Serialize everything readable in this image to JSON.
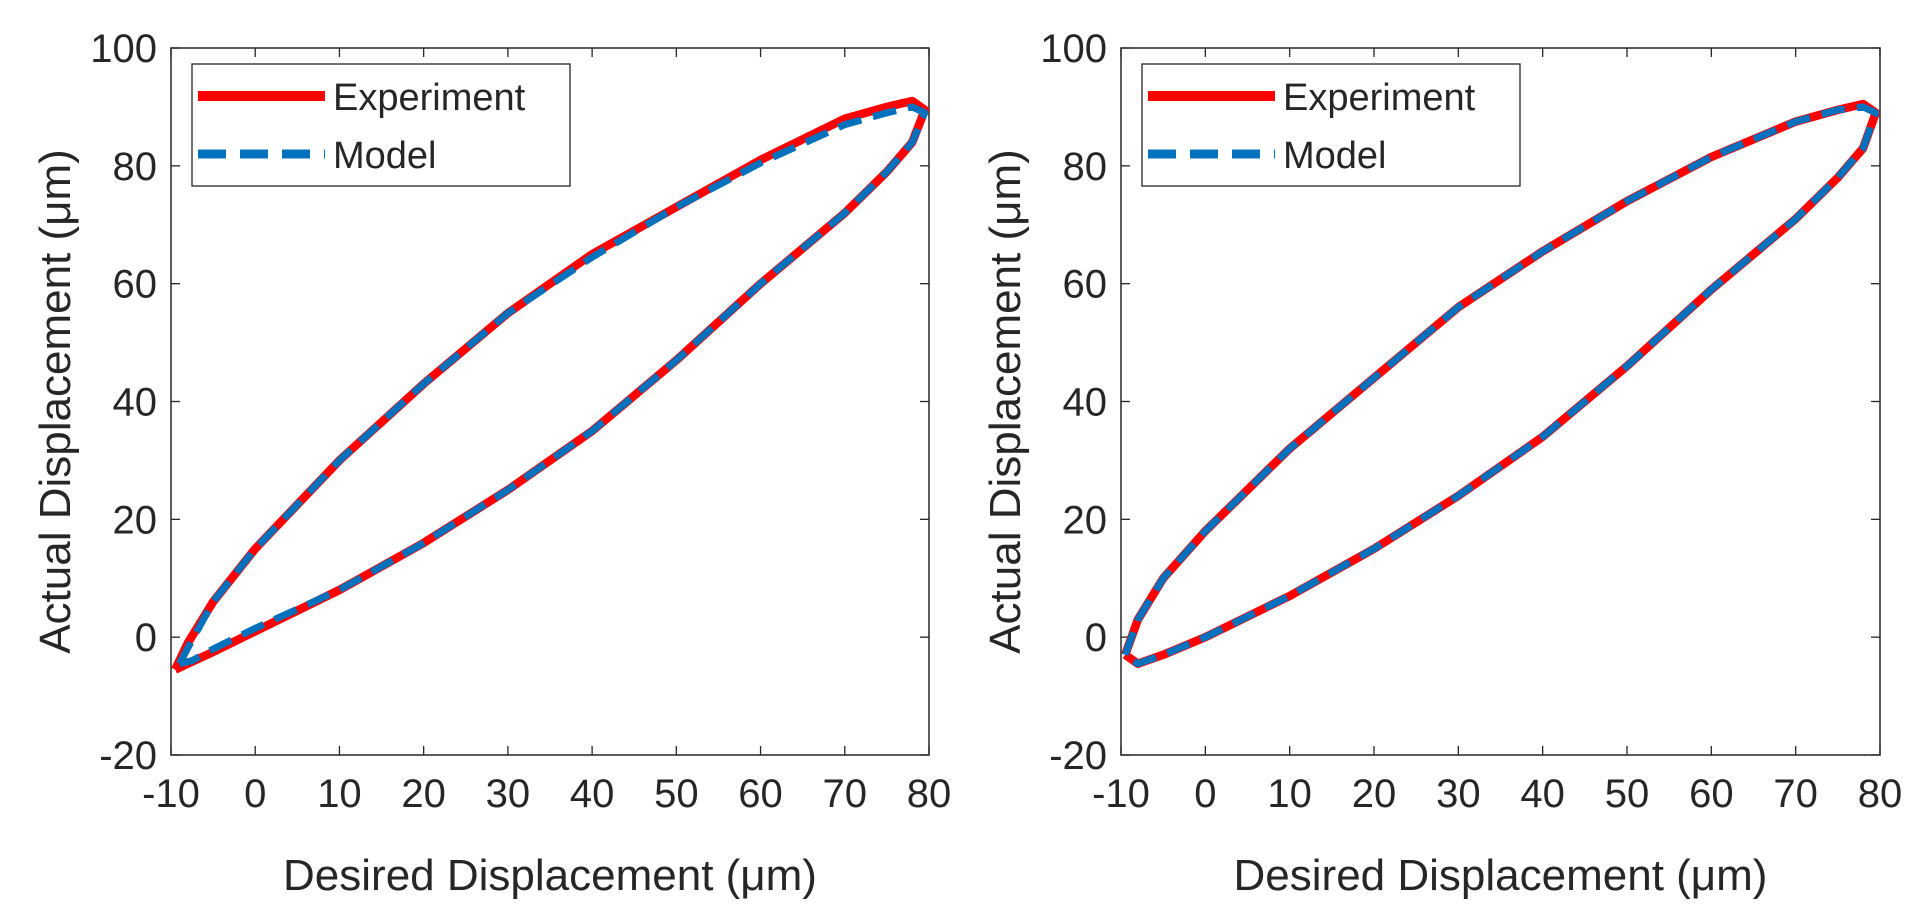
{
  "chart_data": [
    {
      "type": "line",
      "panel": "left",
      "xlabel": "Desired Displacement (μm)",
      "ylabel": "Actual Displacement (μm)",
      "xlim": [
        -10,
        80
      ],
      "ylim": [
        -20,
        100
      ],
      "xticks": [
        -10,
        0,
        10,
        20,
        30,
        40,
        50,
        60,
        70,
        80
      ],
      "yticks": [
        -20,
        0,
        20,
        40,
        60,
        80,
        100
      ],
      "legend": {
        "position": "top-left",
        "entries": [
          "Experiment",
          "Model"
        ]
      },
      "series": [
        {
          "name": "Experiment",
          "color": "#ff0000",
          "style": "solid",
          "x": [
            -9.5,
            -8,
            -5,
            0,
            10,
            20,
            30,
            40,
            50,
            60,
            70,
            75,
            78,
            79.5,
            78,
            75,
            70,
            60,
            50,
            40,
            30,
            20,
            10,
            0,
            -5,
            -8,
            -9.5
          ],
          "y": [
            -5.5,
            -1,
            6,
            15,
            30,
            43,
            55,
            65,
            73,
            81,
            88,
            90,
            91,
            89.5,
            84,
            79,
            72,
            60,
            47,
            35,
            25,
            16,
            8,
            1,
            -2.5,
            -4.5,
            -5.5
          ]
        },
        {
          "name": "Model",
          "color": "#0072bd",
          "style": "dashed",
          "x": [
            -9,
            -7.5,
            -5,
            0,
            10,
            20,
            30,
            40,
            50,
            60,
            70,
            75,
            78,
            79.5,
            78,
            75,
            70,
            60,
            50,
            40,
            30,
            20,
            10,
            0,
            -5,
            -7.5,
            -9
          ],
          "y": [
            -4.5,
            -0.5,
            6,
            15,
            30,
            43,
            55,
            64.5,
            73,
            80.5,
            87,
            89,
            90,
            89,
            84,
            79,
            72,
            60,
            47,
            35,
            25,
            16,
            8,
            1.5,
            -2,
            -4,
            -4.5
          ]
        }
      ]
    },
    {
      "type": "line",
      "panel": "right",
      "xlabel": "Desired Displacement (μm)",
      "ylabel": "Actual Displacement (μm)",
      "xlim": [
        -10,
        80
      ],
      "ylim": [
        -20,
        100
      ],
      "xticks": [
        -10,
        0,
        10,
        20,
        30,
        40,
        50,
        60,
        70,
        80
      ],
      "yticks": [
        -20,
        0,
        20,
        40,
        60,
        80,
        100
      ],
      "legend": {
        "position": "top-left",
        "entries": [
          "Experiment",
          "Model"
        ]
      },
      "series": [
        {
          "name": "Experiment",
          "color": "#ff0000",
          "style": "solid",
          "x": [
            -9.5,
            -8,
            -5,
            0,
            10,
            20,
            30,
            40,
            50,
            60,
            70,
            75,
            78,
            79.5,
            78,
            75,
            70,
            60,
            50,
            40,
            30,
            20,
            10,
            0,
            -5,
            -8,
            -9.5
          ],
          "y": [
            -3,
            3,
            10,
            18,
            32,
            44,
            56,
            65.5,
            74,
            81.5,
            87.5,
            89.5,
            90.5,
            89,
            83,
            78,
            71,
            59,
            46,
            34,
            24,
            15,
            7,
            0,
            -3,
            -4.5,
            -3
          ]
        },
        {
          "name": "Model",
          "color": "#0072bd",
          "style": "dashed",
          "x": [
            -9.5,
            -8,
            -5,
            0,
            10,
            20,
            30,
            40,
            50,
            60,
            70,
            75,
            78,
            79.5,
            78,
            75,
            70,
            60,
            50,
            40,
            30,
            20,
            10,
            0,
            -5,
            -8,
            -9.5
          ],
          "y": [
            -3,
            3,
            10,
            18,
            32,
            44,
            56,
            65.5,
            74,
            81.5,
            87.5,
            89.5,
            90,
            89,
            83,
            78,
            71,
            59,
            46,
            34,
            24,
            15,
            7,
            0,
            -3,
            -4.5,
            -3
          ]
        }
      ]
    }
  ]
}
